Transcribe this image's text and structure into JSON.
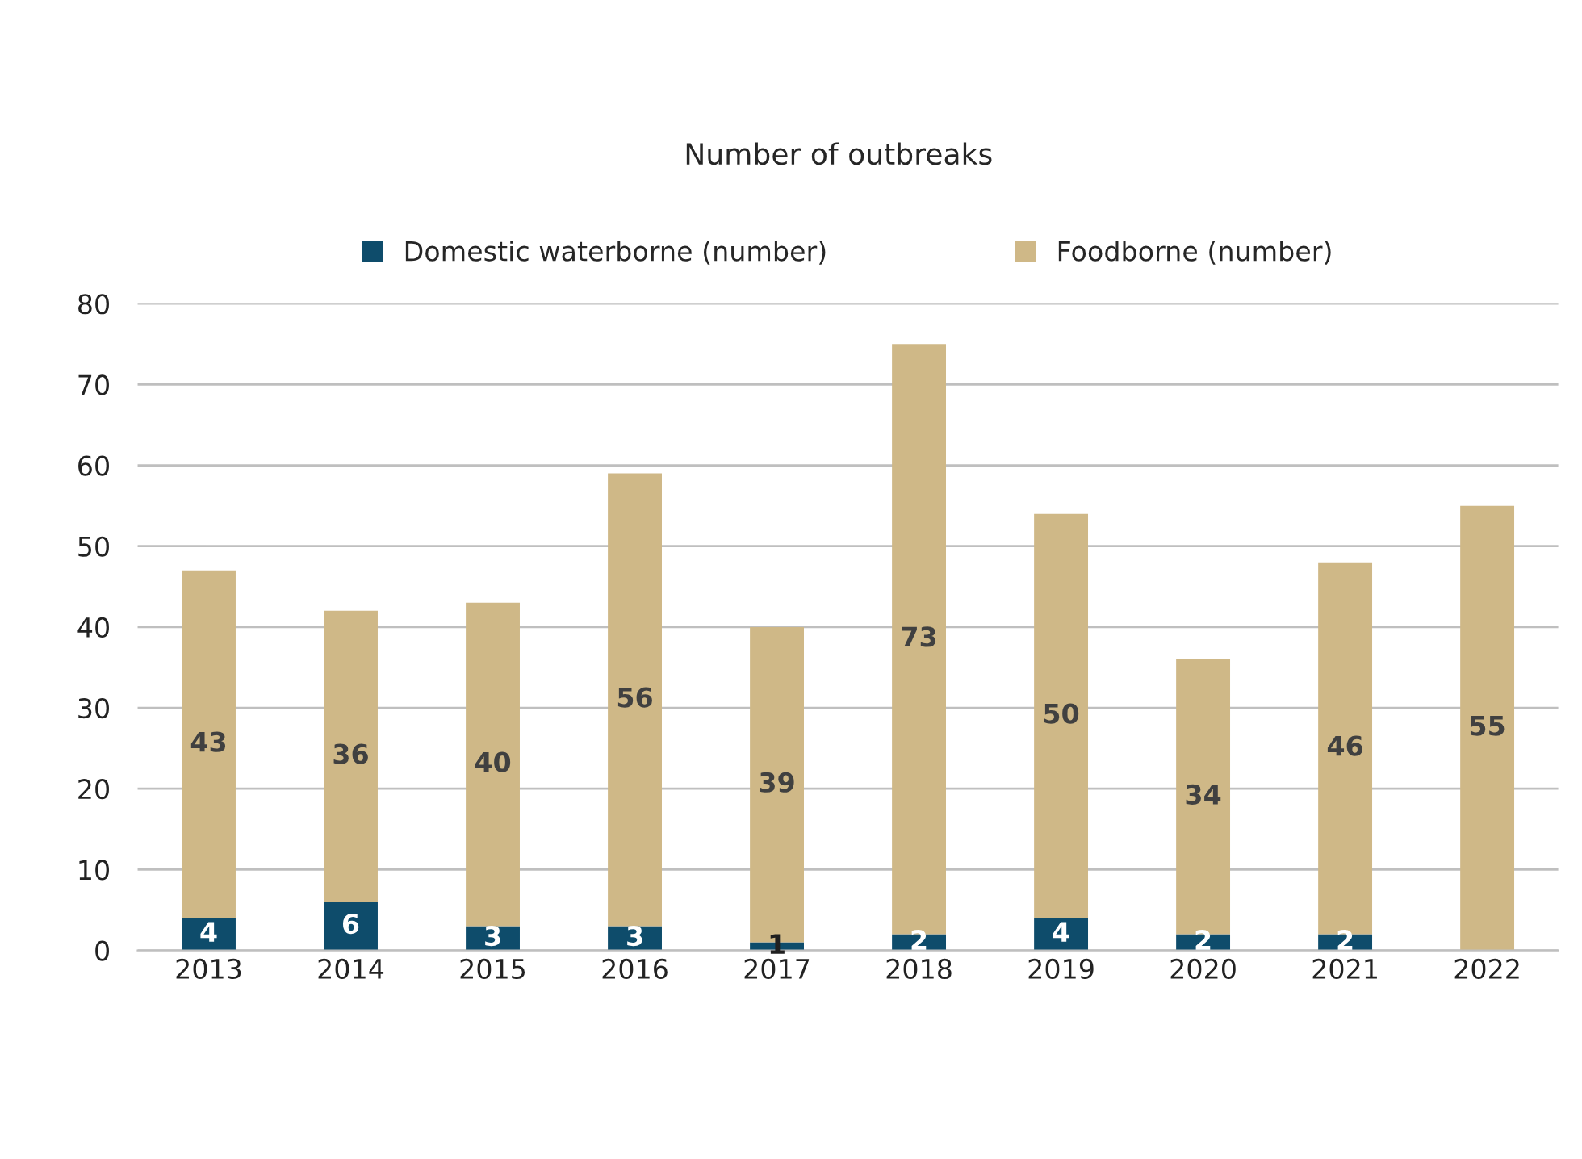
{
  "chart_data": {
    "type": "bar",
    "title": "Number of outbreaks",
    "categories": [
      "2013",
      "2014",
      "2015",
      "2016",
      "2017",
      "2018",
      "2019",
      "2020",
      "2021",
      "2022"
    ],
    "series": [
      {
        "name": "Domestic waterborne (number)",
        "color": "#0e4c6b",
        "values": [
          4,
          6,
          3,
          3,
          1,
          2,
          4,
          2,
          2,
          null
        ]
      },
      {
        "name": "Foodborne (number)",
        "color": "#cfb887",
        "values": [
          43,
          36,
          40,
          56,
          39,
          73,
          50,
          34,
          46,
          55
        ]
      }
    ],
    "stacked": true,
    "data_labels": true,
    "ylim": [
      0,
      80
    ],
    "yticks": [
      0,
      10,
      20,
      30,
      40,
      50,
      60,
      70,
      80
    ],
    "grid": "y",
    "legend": "top"
  }
}
